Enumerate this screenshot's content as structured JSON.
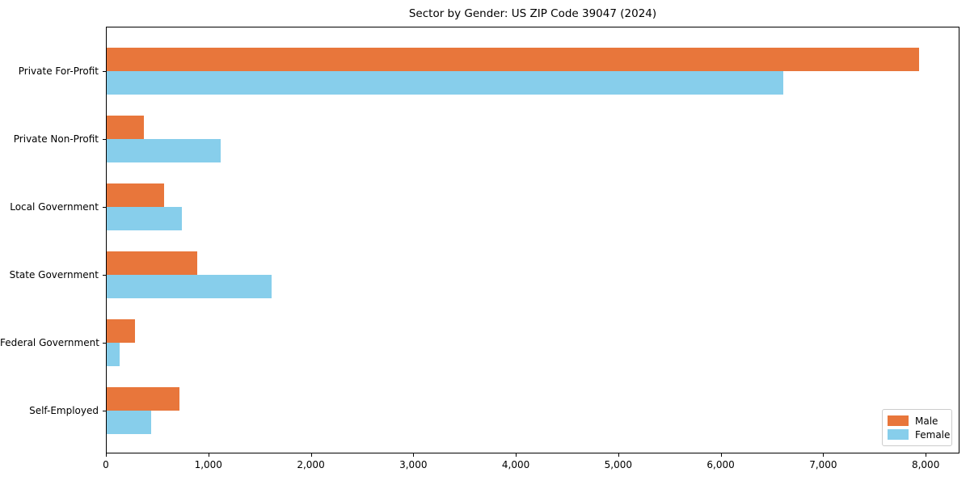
{
  "chart_data": {
    "type": "bar",
    "orientation": "horizontal",
    "title": "Sector by Gender: US ZIP Code 39047 (2024)",
    "categories": [
      "Private For-Profit",
      "Private Non-Profit",
      "Local Government",
      "State Government",
      "Federal Government",
      "Self-Employed"
    ],
    "series": [
      {
        "name": "Male",
        "color": "#e8763b",
        "values": [
          7930,
          360,
          560,
          880,
          280,
          710
        ]
      },
      {
        "name": "Female",
        "color": "#87ceeb",
        "values": [
          6600,
          1110,
          730,
          1610,
          130,
          430
        ]
      }
    ],
    "xlabel": "",
    "ylabel": "",
    "xlim": [
      0,
      8330
    ],
    "x_ticks": [
      0,
      1000,
      2000,
      3000,
      4000,
      5000,
      6000,
      7000,
      8000
    ],
    "x_tick_labels": [
      "0",
      "1,000",
      "2,000",
      "3,000",
      "4,000",
      "5,000",
      "6,000",
      "7,000",
      "8,000"
    ],
    "grid": false,
    "legend": {
      "position": "lower right"
    },
    "colors": {
      "frame": "#000000",
      "text": "#000000",
      "legend_border": "#cccccc"
    }
  }
}
